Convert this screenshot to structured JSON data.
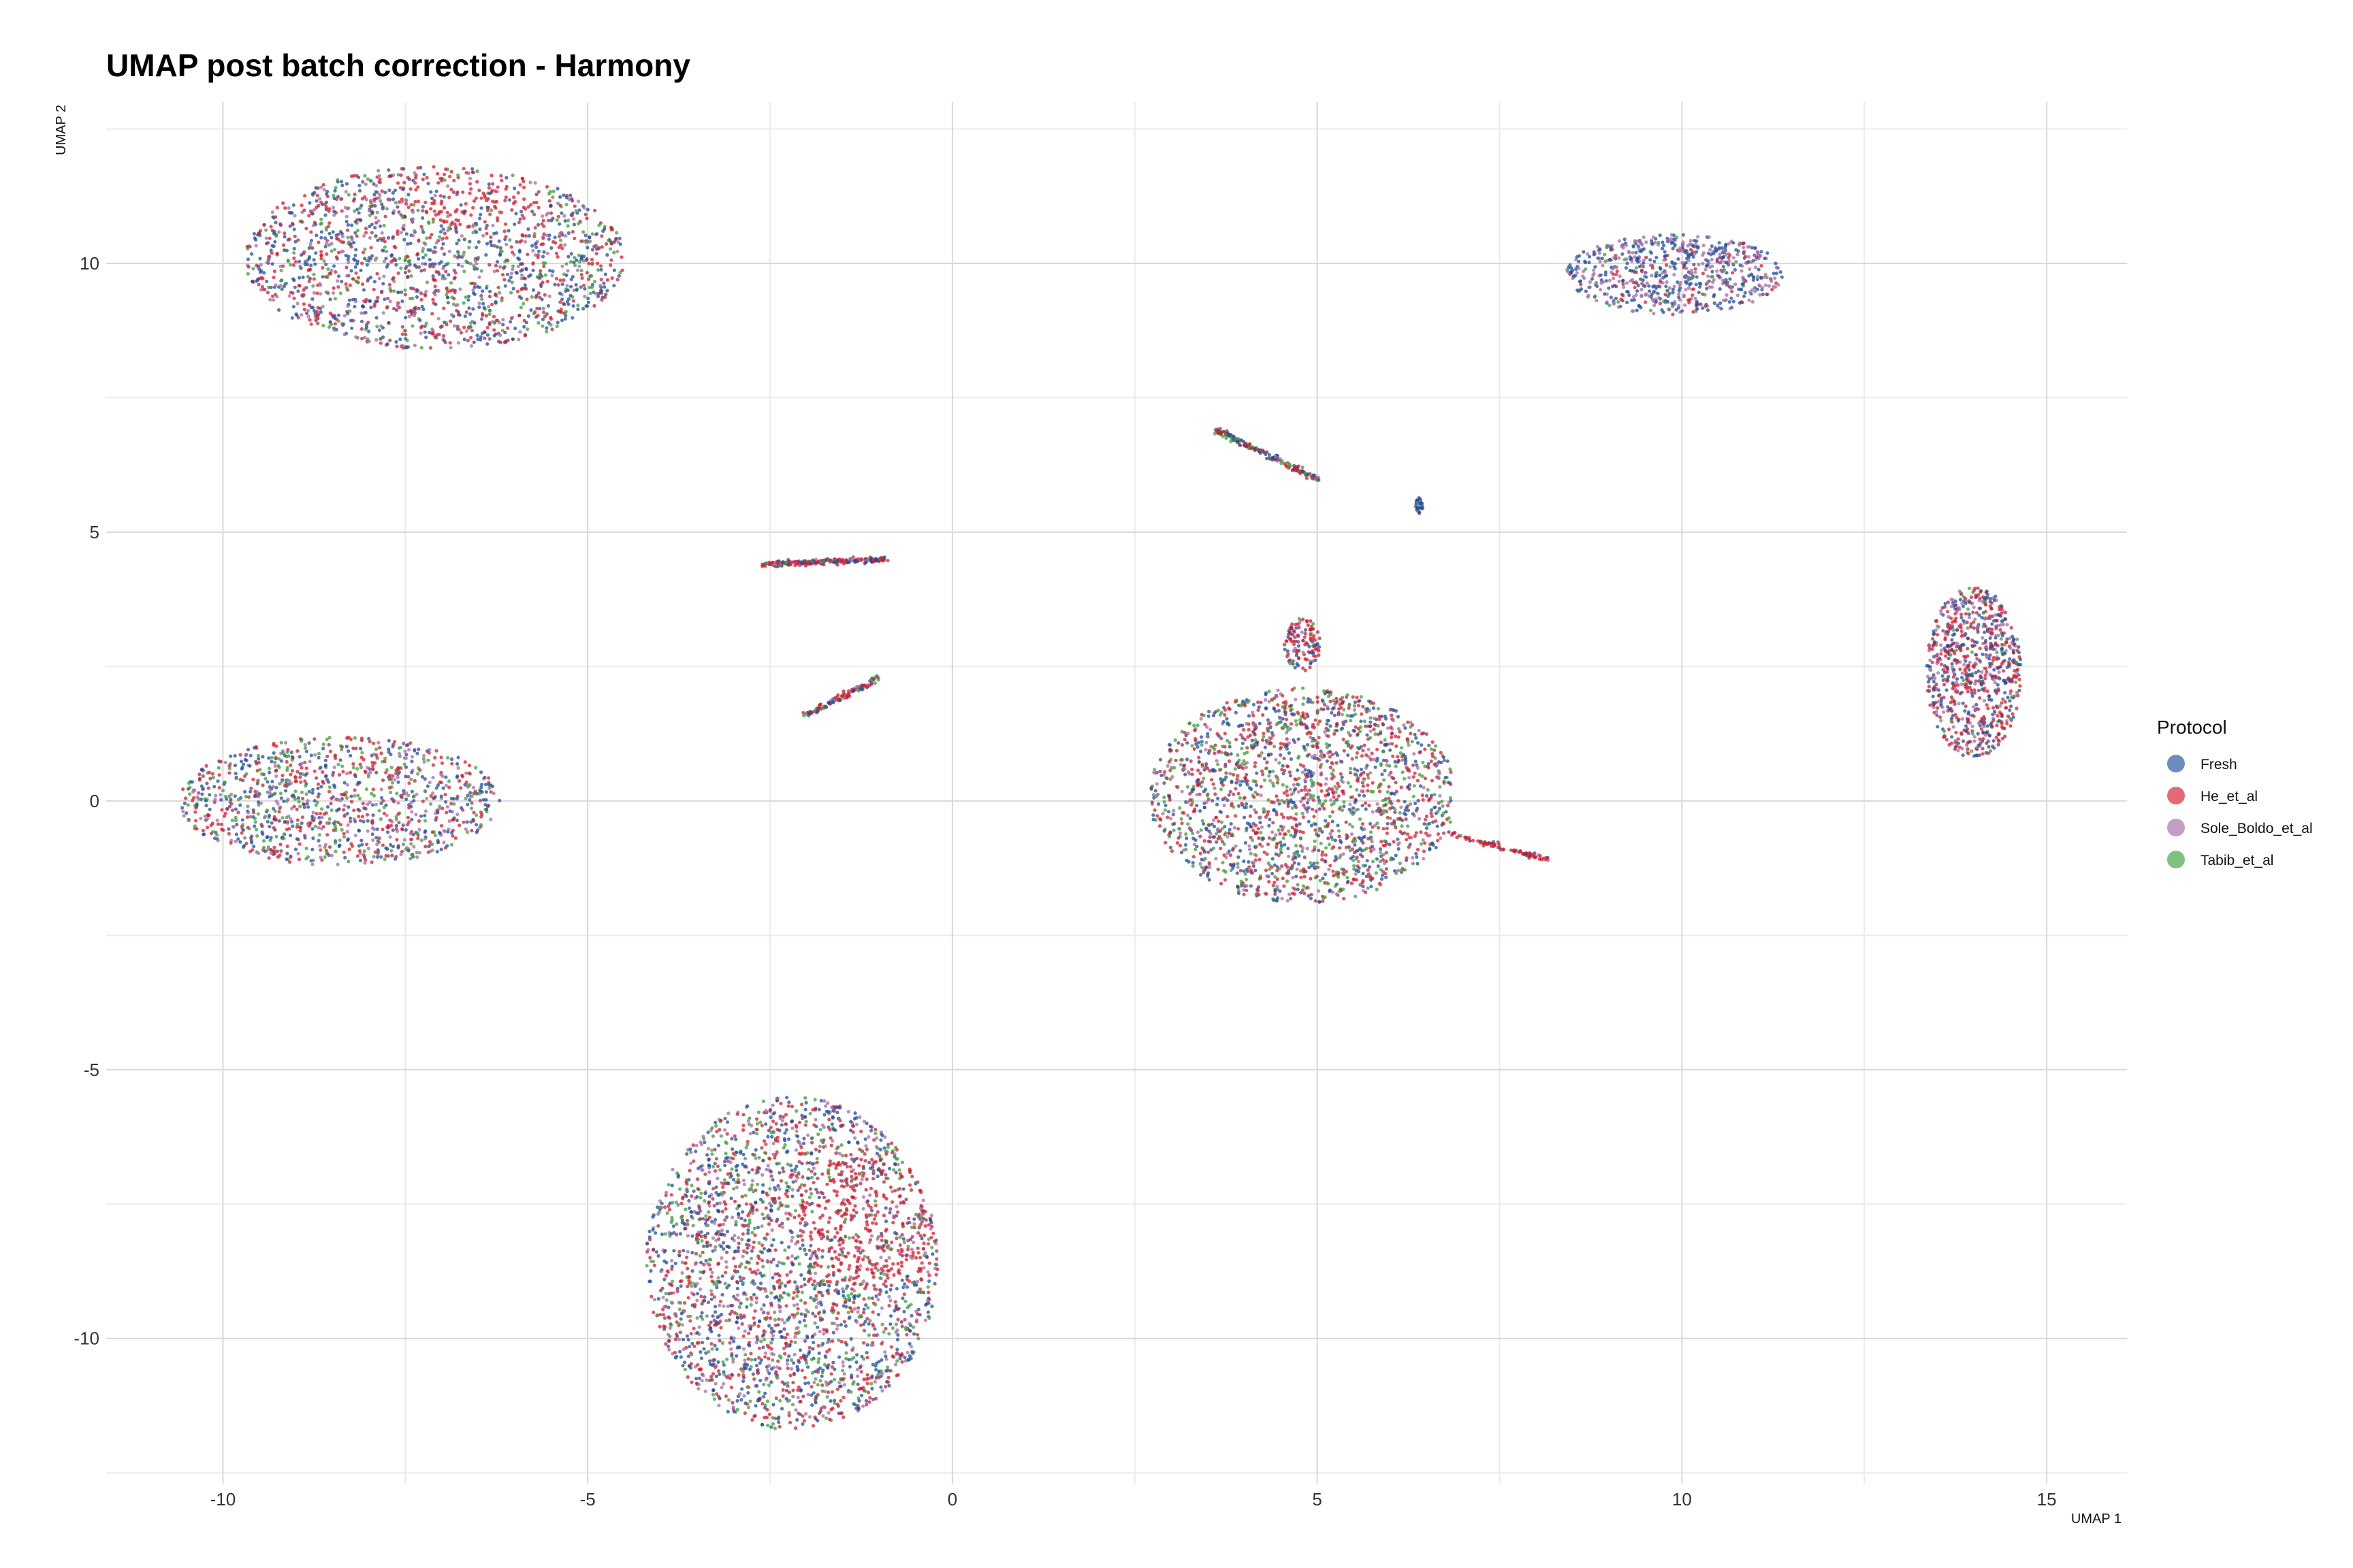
{
  "chart_data": {
    "type": "scatter",
    "title": "UMAP post batch correction - Harmony",
    "xlabel": "UMAP 1",
    "ylabel": "UMAP 2",
    "xlim": [
      -11.6,
      16.1
    ],
    "ylim": [
      -12.7,
      13.0
    ],
    "x_ticks": [
      -10,
      -5,
      0,
      5,
      10,
      15
    ],
    "x_tick_labels": [
      "-10",
      "-5",
      "0",
      "5",
      "10",
      "15"
    ],
    "y_ticks": [
      -10,
      -5,
      0,
      5,
      10
    ],
    "y_tick_labels": [
      "-10",
      "-5",
      "0",
      "5",
      "10"
    ],
    "minor_x": [
      -7.5,
      -2.5,
      2.5,
      7.5,
      12.5
    ],
    "minor_y": [
      -12.5,
      -7.5,
      -2.5,
      2.5,
      7.5,
      12.5
    ],
    "grid": true,
    "legend": {
      "title": "Protocol",
      "position": "right"
    },
    "series": [
      {
        "name": "Fresh",
        "color": "#1F4E9C"
      },
      {
        "name": "He_et_al",
        "color": "#D7192B"
      },
      {
        "name": "Sole_Boldo_et_al",
        "color": "#A569A6"
      },
      {
        "name": "Tabib_et_al",
        "color": "#3C9F3A"
      }
    ],
    "clusters": [
      {
        "cx": -7.1,
        "cy": 10.1,
        "rx": 2.6,
        "ry": 1.7,
        "n": 1700,
        "w": [
          0.36,
          0.32,
          0.18,
          0.14
        ],
        "red_bias": [
          -6.6,
          11.3,
          1.0,
          0.6
        ]
      },
      {
        "cx": -8.4,
        "cy": 0.0,
        "rx": 2.2,
        "ry": 1.2,
        "n": 1100,
        "w": [
          0.3,
          0.3,
          0.2,
          0.2
        ]
      },
      {
        "cx": -2.2,
        "cy": -8.6,
        "rx": 2.0,
        "ry": 3.1,
        "n": 2600,
        "w": [
          0.34,
          0.3,
          0.18,
          0.18
        ],
        "red_bias": [
          -1.2,
          -7.8,
          0.9,
          1.3
        ]
      },
      {
        "cx": 4.8,
        "cy": 0.1,
        "rx": 2.1,
        "ry": 2.0,
        "n": 1900,
        "w": [
          0.3,
          0.35,
          0.14,
          0.21
        ]
      },
      {
        "cx": 4.8,
        "cy": 2.9,
        "rx": 0.25,
        "ry": 0.5,
        "n": 120,
        "w": [
          0.25,
          0.55,
          0.1,
          0.1
        ]
      },
      {
        "cx": 9.9,
        "cy": 9.8,
        "rx": 1.5,
        "ry": 0.75,
        "n": 700,
        "w": [
          0.4,
          0.12,
          0.43,
          0.05
        ]
      },
      {
        "cx": 14.0,
        "cy": 2.4,
        "rx": 0.65,
        "ry": 1.6,
        "n": 800,
        "w": [
          0.35,
          0.4,
          0.2,
          0.05
        ]
      },
      {
        "cx": -2.3,
        "cy": 4.4,
        "rx": 0.9,
        "ry": 0.12,
        "n": 220,
        "w": [
          0.35,
          0.45,
          0.1,
          0.1
        ],
        "line": [
          -2.6,
          4.4,
          -0.9,
          4.5
        ]
      },
      {
        "cx": -1.5,
        "cy": 1.9,
        "rx": 0.6,
        "ry": 0.08,
        "n": 110,
        "w": [
          0.35,
          0.45,
          0.1,
          0.1
        ],
        "line": [
          -2.0,
          1.6,
          -1.0,
          2.3
        ]
      },
      {
        "cx": 4.3,
        "cy": 6.5,
        "rx": 0.8,
        "ry": 0.12,
        "n": 170,
        "w": [
          0.35,
          0.35,
          0.1,
          0.2
        ],
        "line": [
          3.6,
          6.9,
          5.0,
          6.0
        ]
      },
      {
        "cx": 7.2,
        "cy": -0.8,
        "rx": 0.6,
        "ry": 0.07,
        "n": 90,
        "w": [
          0.15,
          0.75,
          0.05,
          0.05
        ],
        "line": [
          6.8,
          -0.6,
          8.2,
          -1.1
        ]
      },
      {
        "cx": 6.4,
        "cy": 5.5,
        "rx": 0.05,
        "ry": 0.15,
        "n": 30,
        "w": [
          0.7,
          0.1,
          0.1,
          0.1
        ]
      }
    ]
  }
}
